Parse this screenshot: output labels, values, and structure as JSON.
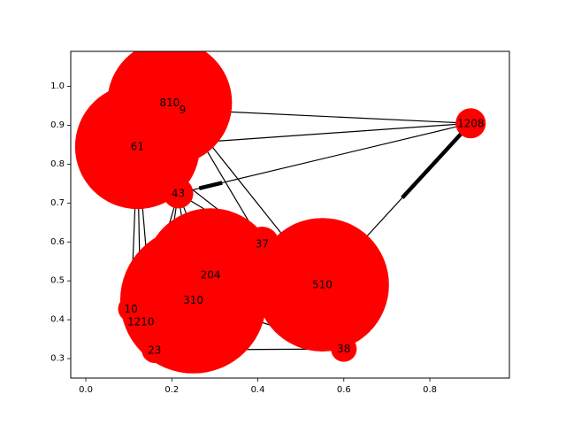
{
  "chart_data": {
    "type": "network",
    "title": "",
    "xlabel": "",
    "ylabel": "",
    "xlim": [
      -0.035,
      0.985
    ],
    "ylim": [
      0.25,
      1.09
    ],
    "xticks": [
      0.0,
      0.2,
      0.4,
      0.6,
      0.8
    ],
    "xtick_labels": [
      "0.0",
      "0.2",
      "0.4",
      "0.6",
      "0.8"
    ],
    "yticks": [
      0.3,
      0.4,
      0.5,
      0.6,
      0.7,
      0.8,
      0.9,
      1.0
    ],
    "ytick_labels": [
      "0.3",
      "0.4",
      "0.5",
      "0.6",
      "0.7",
      "0.8",
      "0.9",
      "1.0"
    ],
    "grid": false,
    "node_color": "#ff0000",
    "edge_color": "#000000",
    "nodes": [
      {
        "id": "810",
        "x": 0.195,
        "y": 0.958,
        "radius": 0.145
      },
      {
        "id": "9",
        "x": 0.225,
        "y": 0.94,
        "radius": 0.035
      },
      {
        "id": "61",
        "x": 0.12,
        "y": 0.845,
        "radius": 0.145
      },
      {
        "id": "1208",
        "x": 0.895,
        "y": 0.905,
        "radius": 0.035
      },
      {
        "id": "43",
        "x": 0.215,
        "y": 0.725,
        "radius": 0.035
      },
      {
        "id": "37",
        "x": 0.41,
        "y": 0.595,
        "radius": 0.04
      },
      {
        "id": "204",
        "x": 0.29,
        "y": 0.515,
        "radius": 0.155
      },
      {
        "id": "510",
        "x": 0.55,
        "y": 0.49,
        "radius": 0.155
      },
      {
        "id": "310",
        "x": 0.25,
        "y": 0.45,
        "radius": 0.17
      },
      {
        "id": "10",
        "x": 0.105,
        "y": 0.428,
        "radius": 0.03
      },
      {
        "id": "1210",
        "x": 0.128,
        "y": 0.395,
        "radius": 0.035
      },
      {
        "id": "23",
        "x": 0.16,
        "y": 0.322,
        "radius": 0.03
      },
      {
        "id": "38",
        "x": 0.6,
        "y": 0.325,
        "radius": 0.03
      }
    ],
    "edges": [
      {
        "source": "9",
        "target": "1208",
        "weight": 1
      },
      {
        "source": "61",
        "target": "1208",
        "weight": 1
      },
      {
        "source": "43",
        "target": "1208",
        "weight": 1
      },
      {
        "source": "43",
        "target": "37",
        "weight": 1
      },
      {
        "source": "61",
        "target": "37",
        "weight": 1
      },
      {
        "source": "9",
        "target": "37",
        "weight": 1
      },
      {
        "source": "9",
        "target": "510",
        "weight": 1
      },
      {
        "source": "43",
        "target": "204",
        "weight": 1
      },
      {
        "source": "43",
        "target": "310",
        "weight": 1
      },
      {
        "source": "61",
        "target": "10",
        "weight": 1
      },
      {
        "source": "61",
        "target": "1210",
        "weight": 1
      },
      {
        "source": "61",
        "target": "23",
        "weight": 1
      },
      {
        "source": "43",
        "target": "1210",
        "weight": 1
      },
      {
        "source": "43",
        "target": "23",
        "weight": 1
      },
      {
        "source": "204",
        "target": "37",
        "weight": 1
      },
      {
        "source": "204",
        "target": "510",
        "weight": 1
      },
      {
        "source": "310",
        "target": "510",
        "weight": 1
      },
      {
        "source": "310",
        "target": "38",
        "weight": 1
      },
      {
        "source": "23",
        "target": "38",
        "weight": 1
      },
      {
        "source": "510",
        "target": "38",
        "weight": 1
      },
      {
        "source": "10",
        "target": "204",
        "weight": 1
      },
      {
        "source": "1210",
        "target": "310",
        "weight": 1
      },
      {
        "source": "1208",
        "target": "510",
        "weight": 1
      },
      {
        "source": "37",
        "target": "510",
        "weight": 1
      }
    ],
    "thick_segments": [
      {
        "source": "43",
        "target": "1208",
        "from": 0.05,
        "to": 0.105
      },
      {
        "source": "1208",
        "target": "510",
        "from": 0.03,
        "to": 0.235
      }
    ]
  }
}
